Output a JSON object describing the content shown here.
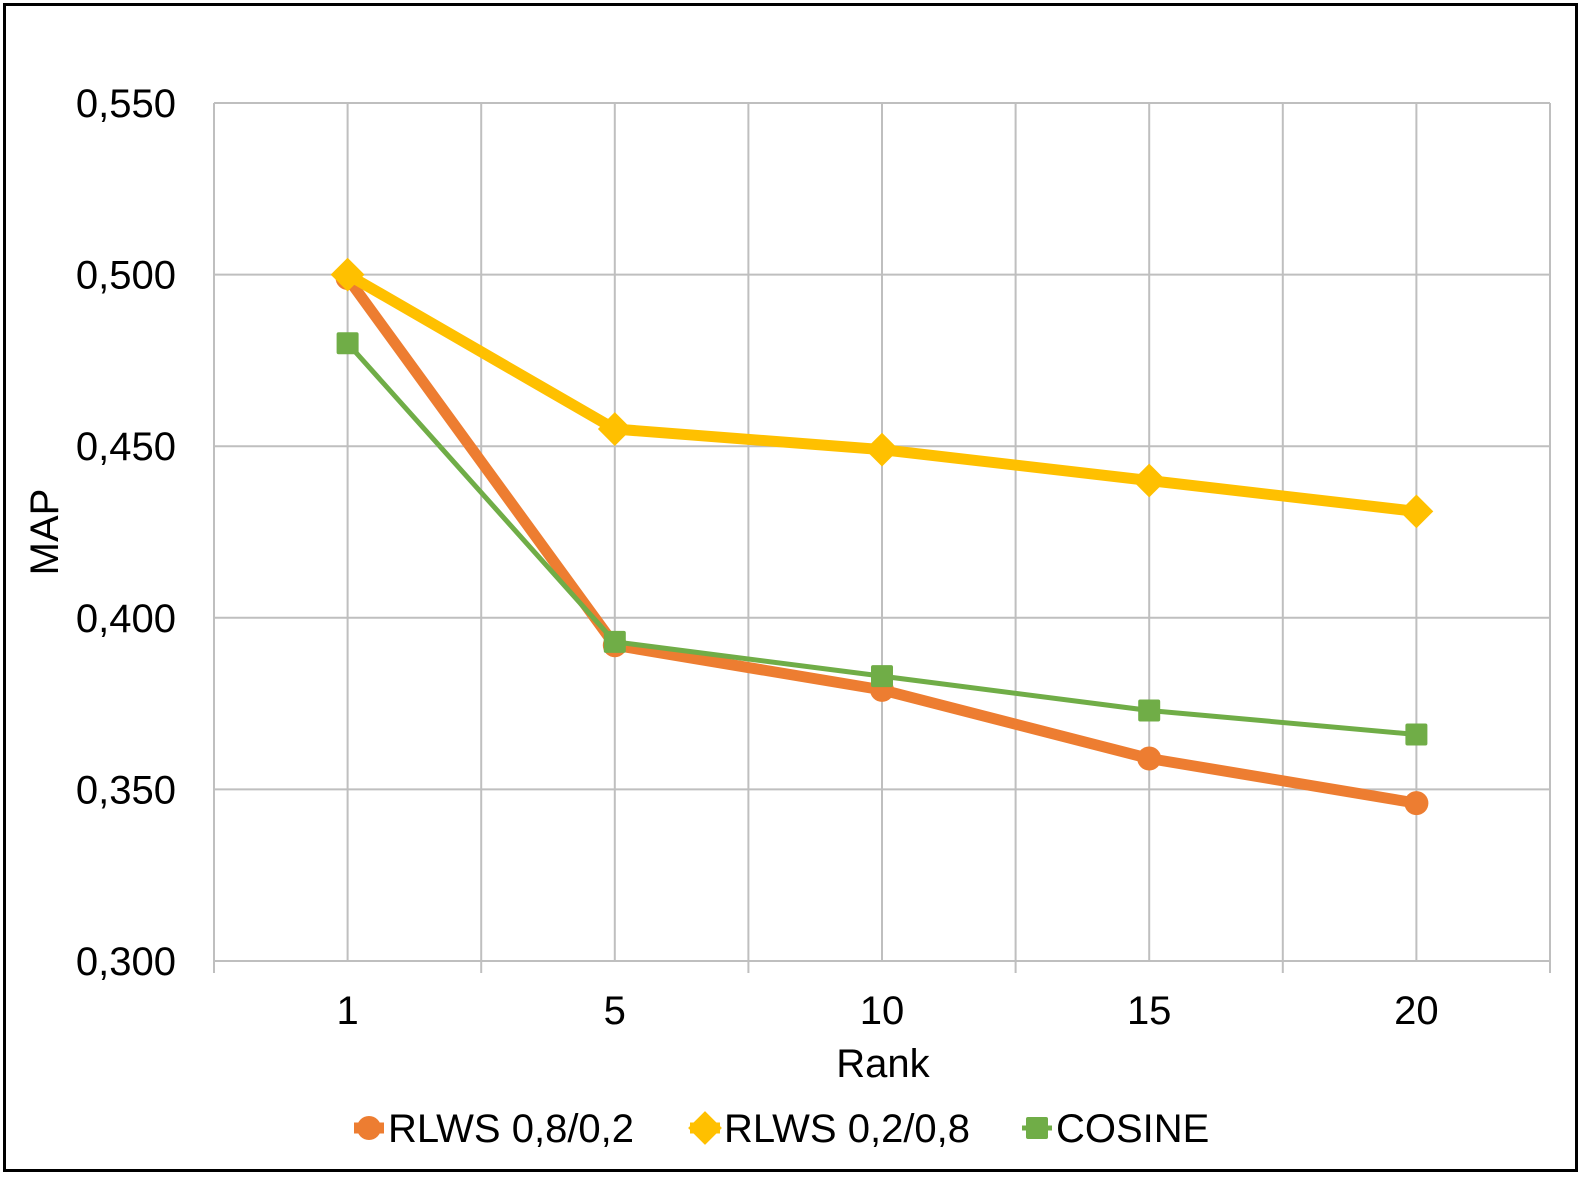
{
  "chart_data": {
    "type": "line",
    "title": "",
    "xlabel": "Rank",
    "ylabel": "MAP",
    "categories": [
      "1",
      "5",
      "10",
      "15",
      "20"
    ],
    "ylim": [
      0.3,
      0.55
    ],
    "yticks": [
      "0,300",
      "0,350",
      "0,400",
      "0,450",
      "0,500",
      "0,550"
    ],
    "grid": true,
    "legend_position": "bottom",
    "series": [
      {
        "name": "RLWS 0,8/0,2",
        "values": [
          0.499,
          0.392,
          0.379,
          0.359,
          0.346
        ],
        "color": "#ED7D31",
        "marker": "circle"
      },
      {
        "name": "RLWS 0,2/0,8",
        "values": [
          0.5,
          0.455,
          0.449,
          0.44,
          0.431
        ],
        "color": "#FFC000",
        "marker": "diamond"
      },
      {
        "name": "COSINE",
        "values": [
          0.48,
          0.393,
          0.383,
          0.373,
          0.366
        ],
        "color": "#70AD47",
        "marker": "square"
      }
    ]
  }
}
